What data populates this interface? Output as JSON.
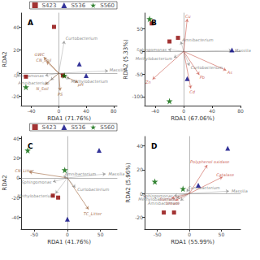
{
  "chart_data": [
    {
      "type": "scatter",
      "title": "A",
      "xlabel": "RDA1 (71.76%)",
      "ylabel": "RDA2",
      "xlim": [
        -55,
        85
      ],
      "ylim": [
        -28,
        52
      ],
      "xticks": [
        -40,
        0,
        40,
        80
      ],
      "yticks": [
        -20,
        0,
        20,
        40
      ],
      "grid": false,
      "legend": "upper right",
      "series": [
        {
          "name": "S423",
          "color": "#8B0000",
          "marker": "square",
          "values": [
            [
              -48,
              -3
            ],
            [
              -7,
              40
            ],
            [
              6,
              -2
            ]
          ]
        },
        {
          "name": "S536",
          "color": "#000080",
          "marker": "triangle",
          "values": [
            [
              30,
              8
            ],
            [
              40,
              -2
            ]
          ]
        },
        {
          "name": "S560",
          "color": "#006400",
          "marker": "star",
          "values": [
            [
              -48,
              -12
            ],
            [
              8,
              -2
            ]
          ]
        }
      ],
      "annotations": [
        {
          "text": "CN_Soil",
          "x": -18,
          "y": 10,
          "text_x": -22,
          "text_y": 11,
          "color": "#8B4513"
        },
        {
          "text": "GWC",
          "x": -22,
          "y": 14,
          "text_x": -28,
          "text_y": 16,
          "color": "#8B4513"
        },
        {
          "text": "pH",
          "x": 28,
          "y": -8,
          "text_x": 32,
          "text_y": -10,
          "color": "#8B4513"
        },
        {
          "text": "N_Soil",
          "x": -20,
          "y": -10,
          "text_x": -24,
          "text_y": -13,
          "color": "#8B4513"
        },
        {
          "text": "PS",
          "x": 2,
          "y": -15,
          "text_x": 2,
          "text_y": -18,
          "color": "#8B4513"
        },
        {
          "text": "Curtobacterium",
          "x": 8,
          "y": 28,
          "text_x": 10,
          "text_y": 30,
          "color": "#666666"
        },
        {
          "text": "Massilia",
          "x": 72,
          "y": 2,
          "text_x": 74,
          "text_y": 3,
          "color": "#666666"
        },
        {
          "text": "Methylobacterium",
          "x": 16,
          "y": -5,
          "text_x": 18,
          "text_y": -7,
          "color": "#666666"
        },
        {
          "text": "Sphingomonas",
          "x": -20,
          "y": -2,
          "text_x": -22,
          "text_y": -2,
          "color": "#666666"
        },
        {
          "text": "Amnibacterium",
          "x": -12,
          "y": -6,
          "text_x": -14,
          "text_y": -8,
          "color": "#666666"
        }
      ]
    },
    {
      "type": "scatter",
      "title": "B",
      "xlabel": "RDA1 (67.06%)",
      "ylabel": "RDA2 (5.33%)",
      "xlim": [
        -55,
        80
      ],
      "ylim": [
        -120,
        85
      ],
      "xticks": [
        -40,
        0,
        40,
        80
      ],
      "yticks": [
        -100,
        -50,
        0,
        50
      ],
      "grid": false,
      "series": [
        {
          "name": "S423",
          "color": "#8B0000",
          "marker": "square",
          "values": [
            [
              -20,
              22
            ],
            [
              -45,
              62
            ],
            [
              -8,
              30
            ]
          ]
        },
        {
          "name": "S536",
          "color": "#000080",
          "marker": "triangle",
          "values": [
            [
              68,
              3
            ],
            [
              5,
              -60
            ]
          ]
        },
        {
          "name": "S560",
          "color": "#006400",
          "marker": "star",
          "values": [
            [
              -48,
              72
            ],
            [
              -20,
              -110
            ]
          ]
        }
      ],
      "annotations": [
        {
          "text": "Cu",
          "x": 5,
          "y": 72,
          "text_x": 6,
          "text_y": 78,
          "color": "#c0392b"
        },
        {
          "text": "Zn",
          "x": -44,
          "y": -62,
          "text_x": -50,
          "text_y": -68,
          "color": "#c0392b"
        },
        {
          "text": "Pb",
          "x": 22,
          "y": -52,
          "text_x": 26,
          "text_y": -57,
          "color": "#c0392b"
        },
        {
          "text": "As",
          "x": 60,
          "y": -42,
          "text_x": 65,
          "text_y": -46,
          "color": "#c0392b"
        },
        {
          "text": "Cd",
          "x": 10,
          "y": -82,
          "text_x": 12,
          "text_y": -90,
          "color": "#c0392b"
        },
        {
          "text": "Curtobacterium",
          "x": 8,
          "y": -32,
          "text_x": 10,
          "text_y": -35,
          "color": "#666666"
        },
        {
          "text": "Massilia",
          "x": 68,
          "y": 2,
          "text_x": 72,
          "text_y": 2,
          "color": "#666666"
        },
        {
          "text": "Methylobacterium",
          "x": -14,
          "y": -14,
          "text_x": -16,
          "text_y": -16,
          "color": "#666666"
        },
        {
          "text": "Sphingomonas",
          "x": -22,
          "y": 4,
          "text_x": -24,
          "text_y": 4,
          "color": "#666666"
        },
        {
          "text": "Amnibacterium",
          "x": -4,
          "y": 22,
          "text_x": -2,
          "text_y": 25,
          "color": "#666666"
        }
      ]
    },
    {
      "type": "scatter",
      "title": "C",
      "xlabel": "RDA1 (41.76%)",
      "ylabel": "RDA2",
      "xlim": [
        -70,
        75
      ],
      "ylim": [
        -52,
        42
      ],
      "xticks": [
        -50,
        0,
        50
      ],
      "yticks": [
        -40,
        -20,
        0,
        20,
        40
      ],
      "grid": false,
      "legend": "upper right",
      "series": [
        {
          "name": "S423",
          "color": "#8B0000",
          "marker": "square",
          "values": [
            [
              -22,
              -18
            ],
            [
              -14,
              -20
            ]
          ]
        },
        {
          "name": "S536",
          "color": "#000080",
          "marker": "triangle",
          "values": [
            [
              48,
              28
            ],
            [
              0,
              -42
            ]
          ]
        },
        {
          "name": "S560",
          "color": "#006400",
          "marker": "star",
          "values": [
            [
              -60,
              28
            ],
            [
              -4,
              8
            ]
          ]
        }
      ],
      "annotations": [
        {
          "text": "CN_Litter",
          "x": -58,
          "y": 6,
          "text_x": -65,
          "text_y": 7,
          "color": "#8B4513"
        },
        {
          "text": "TC_Litter",
          "x": 32,
          "y": -32,
          "text_x": 38,
          "text_y": -36,
          "color": "#8B4513"
        },
        {
          "text": "Curtobacterium",
          "x": 12,
          "y": -10,
          "text_x": 15,
          "text_y": -12,
          "color": "#666666"
        },
        {
          "text": "Massilia",
          "x": 58,
          "y": 4,
          "text_x": 62,
          "text_y": 4,
          "color": "#666666"
        },
        {
          "text": "Methylobacterium",
          "x": -18,
          "y": -16,
          "text_x": -20,
          "text_y": -18,
          "color": "#666666"
        },
        {
          "text": "Sphingomonas",
          "x": -22,
          "y": -4,
          "text_x": -24,
          "text_y": -4,
          "color": "#666666"
        },
        {
          "text": "Amnibacterium",
          "x": -6,
          "y": 2,
          "text_x": -4,
          "text_y": 4,
          "color": "#666666"
        }
      ]
    },
    {
      "type": "scatter",
      "title": "D",
      "xlabel": "RDA1 (55.99%)",
      "ylabel": "RDA2 (5.96%)",
      "xlim": [
        -70,
        80
      ],
      "ylim": [
        -30,
        48
      ],
      "xticks": [
        -50,
        0,
        50
      ],
      "yticks": [
        -20,
        0,
        20,
        40
      ],
      "grid": false,
      "series": [
        {
          "name": "S423",
          "color": "#8B0000",
          "marker": "square",
          "values": [
            [
              -40,
              -16
            ],
            [
              -24,
              -16
            ]
          ]
        },
        {
          "name": "S536",
          "color": "#000080",
          "marker": "triangle",
          "values": [
            [
              60,
              38
            ],
            [
              14,
              7
            ]
          ]
        },
        {
          "name": "S560",
          "color": "#006400",
          "marker": "star",
          "values": [
            [
              -54,
              10
            ],
            [
              -10,
              4
            ]
          ]
        }
      ],
      "annotations": [
        {
          "text": "Sucrase",
          "x": -28,
          "y": -4,
          "text_x": -34,
          "text_y": -5,
          "color": "#c0392b"
        },
        {
          "text": "Urease",
          "x": -22,
          "y": -6,
          "text_x": -26,
          "text_y": -8,
          "color": "#c0392b"
        },
        {
          "text": "Polyphenol oxidase",
          "x": 28,
          "y": 24,
          "text_x": 32,
          "text_y": 27,
          "color": "#c0392b"
        },
        {
          "text": "Catalase",
          "x": 52,
          "y": 14,
          "text_x": 56,
          "text_y": 16,
          "color": "#c0392b"
        },
        {
          "text": "Curtobacterium",
          "x": -4,
          "y": 4,
          "text_x": -2,
          "text_y": 5,
          "color": "#666666"
        },
        {
          "text": "Massilia",
          "x": 62,
          "y": 2,
          "text_x": 66,
          "text_y": 2,
          "color": "#666666"
        },
        {
          "text": "Methylobacterium",
          "x": -20,
          "y": -4,
          "text_x": -22,
          "text_y": -5,
          "color": "#666666"
        },
        {
          "text": "Sphingomonas",
          "x": -24,
          "y": -2,
          "text_x": -26,
          "text_y": -2,
          "color": "#666666"
        },
        {
          "text": "Amnibacterium",
          "x": -14,
          "y": -6,
          "text_x": -16,
          "text_y": -8,
          "color": "#666666"
        }
      ]
    }
  ]
}
